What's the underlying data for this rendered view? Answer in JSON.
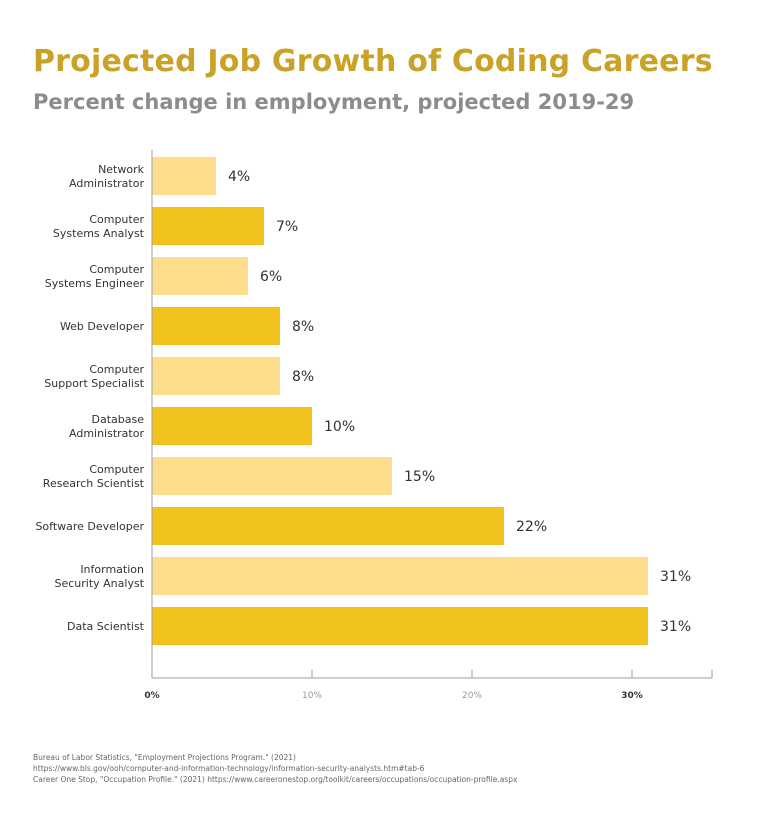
{
  "chart_data": {
    "type": "bar",
    "orientation": "horizontal",
    "title": "Projected Job Growth of Coding Careers",
    "subtitle": "Percent change in employment, projected 2019-29",
    "categories": [
      [
        "Network",
        "Administrator"
      ],
      [
        "Computer",
        "Systems Analyst"
      ],
      [
        "Computer",
        "Systems Engineer"
      ],
      [
        "Web Developer"
      ],
      [
        "Computer",
        "Support Specialist"
      ],
      [
        "Database",
        "Administrator"
      ],
      [
        "Computer",
        "Research Scientist"
      ],
      [
        "Software Developer"
      ],
      [
        "Information",
        "Security Analyst"
      ],
      [
        "Data Scientist"
      ]
    ],
    "values": [
      4,
      7,
      6,
      8,
      8,
      10,
      15,
      22,
      31,
      31
    ],
    "value_labels": [
      "4%",
      "7%",
      "6%",
      "8%",
      "8%",
      "10%",
      "15%",
      "22%",
      "31%",
      "31%"
    ],
    "xlim": [
      0,
      35
    ],
    "xticks": [
      0,
      10,
      20,
      30
    ],
    "xtick_labels": [
      "0%",
      "10%",
      "20%",
      "30%"
    ],
    "grid": false,
    "colors": {
      "light_bar": "#fddd8c",
      "dark_bar": "#f1c31c",
      "title": "#c9a227",
      "subtitle": "#8c8c8c"
    }
  },
  "sources": [
    "Bureau of Labor Statistics, \"Employment Projections Program.\" (2021)",
    "https://www.bls.gov/ooh/computer-and-information-technology/information-security-analysts.htm#tab-6",
    "Career One Stop, \"Occupation Profile.\" (2021) https://www.careeronestop.org/toolkit/careers/occupations/occupation-profile.aspx"
  ]
}
